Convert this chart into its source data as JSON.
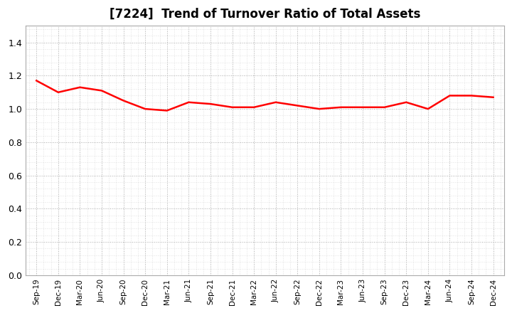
{
  "title": "[7224]  Trend of Turnover Ratio of Total Assets",
  "title_fontsize": 12,
  "line_color": "#FF0000",
  "line_width": 1.8,
  "background_color": "#FFFFFF",
  "grid_color": "#AAAAAA",
  "ylim": [
    0.0,
    1.5
  ],
  "yticks": [
    0.0,
    0.2,
    0.4,
    0.6,
    0.8,
    1.0,
    1.2,
    1.4
  ],
  "x_labels": [
    "Sep-19",
    "Dec-19",
    "Mar-20",
    "Jun-20",
    "Sep-20",
    "Dec-20",
    "Mar-21",
    "Jun-21",
    "Sep-21",
    "Dec-21",
    "Mar-22",
    "Jun-22",
    "Sep-22",
    "Dec-22",
    "Mar-23",
    "Jun-23",
    "Sep-23",
    "Dec-23",
    "Mar-24",
    "Jun-24",
    "Sep-24",
    "Dec-24"
  ],
  "values": [
    1.17,
    1.1,
    1.13,
    1.11,
    1.05,
    1.0,
    0.99,
    1.04,
    1.03,
    1.01,
    1.01,
    1.04,
    1.02,
    1.0,
    1.01,
    1.01,
    1.01,
    1.04,
    1.0,
    1.08,
    1.08,
    1.07
  ]
}
